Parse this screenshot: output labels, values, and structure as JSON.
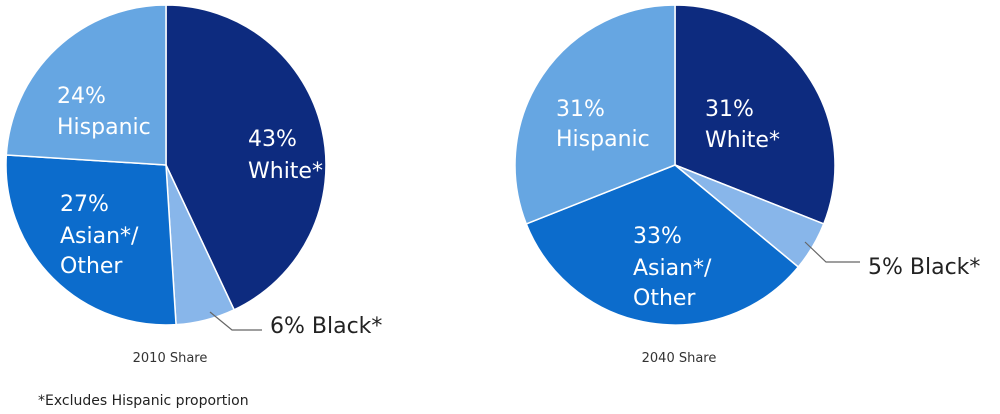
{
  "chart_data": [
    {
      "type": "pie",
      "caption": "2010 Share",
      "slices": [
        {
          "category": "White*",
          "value": 43,
          "pct_label": "43%",
          "color": "#0d2b7f"
        },
        {
          "category": "Black*",
          "value": 6,
          "pct_label": "6%",
          "color": "#88b6ea"
        },
        {
          "category": "Asian*/ Other",
          "value": 27,
          "pct_label": "27%",
          "color": "#0c6ccc"
        },
        {
          "category": "Hispanic",
          "value": 24,
          "pct_label": "24%",
          "color": "#66a6e2"
        }
      ]
    },
    {
      "type": "pie",
      "caption": "2040 Share",
      "slices": [
        {
          "category": "White*",
          "value": 31,
          "pct_label": "31%",
          "color": "#0d2b7f"
        },
        {
          "category": "Black*",
          "value": 5,
          "pct_label": "5%",
          "color": "#88b6ea"
        },
        {
          "category": "Asian*/ Other",
          "value": 33,
          "pct_label": "33%",
          "color": "#0c6ccc"
        },
        {
          "category": "Hispanic",
          "value": 31,
          "pct_label": "31%",
          "color": "#66a6e2"
        }
      ]
    }
  ],
  "footnote": "*Excludes Hispanic proportion"
}
